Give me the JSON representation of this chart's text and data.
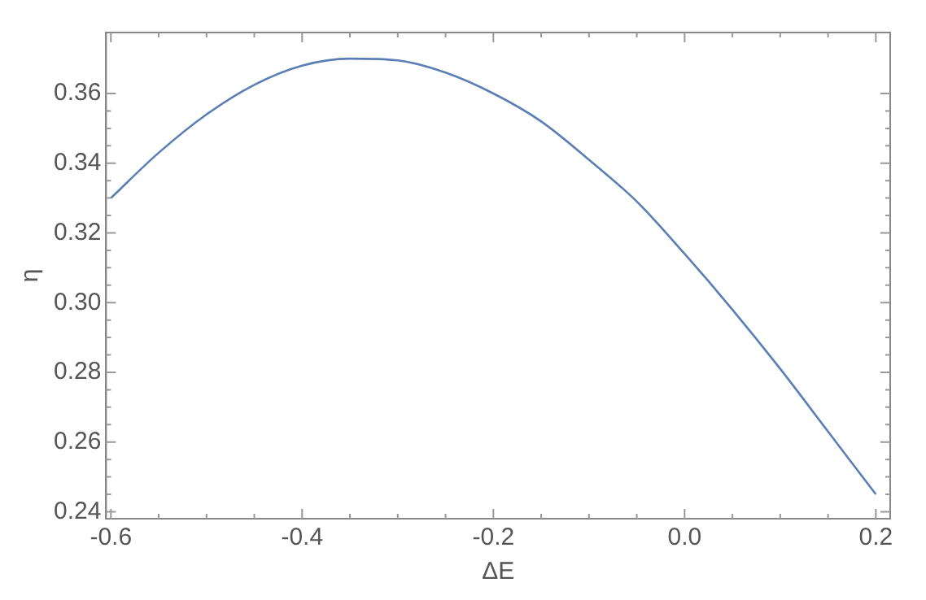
{
  "chart_data": {
    "type": "line",
    "xlabel": "ΔE",
    "ylabel": "η",
    "x": [
      -0.6,
      -0.55,
      -0.5,
      -0.45,
      -0.4,
      -0.35,
      -0.3,
      -0.25,
      -0.2,
      -0.15,
      -0.1,
      -0.05,
      0,
      0.05,
      0.1,
      0.15,
      0.2
    ],
    "series": [
      {
        "color": "#5b7fb5",
        "values": [
          0.33,
          0.343,
          0.354,
          0.3625,
          0.368,
          0.37,
          0.3695,
          0.366,
          0.36,
          0.352,
          0.341,
          0.329,
          0.314,
          0.298,
          0.281,
          0.263,
          0.245
        ]
      }
    ],
    "xlim": [
      -0.605,
      0.215
    ],
    "xticks": [
      -0.6,
      {
        "value": -0.4,
        "label": "-0.4"
      },
      {
        "value": -0.2,
        "label": "-0.2"
      },
      {
        "value": 0,
        "label": "0.0"
      },
      0.2
    ],
    "ylim": [
      0.238,
      0.3775
    ],
    "yticks": [
      {
        "value": 0.24,
        "label": "0.24"
      },
      {
        "value": 0.26,
        "label": "0.26"
      },
      {
        "value": 0.28,
        "label": "0.28"
      },
      {
        "value": 0.3,
        "label": "0.30"
      },
      {
        "value": 0.32,
        "label": "0.32"
      },
      {
        "value": 0.34,
        "label": "0.34"
      },
      {
        "value": 0.36,
        "label": "0.36"
      }
    ],
    "grid": false,
    "legend": false,
    "marker": "none",
    "line_style": "solid"
  }
}
